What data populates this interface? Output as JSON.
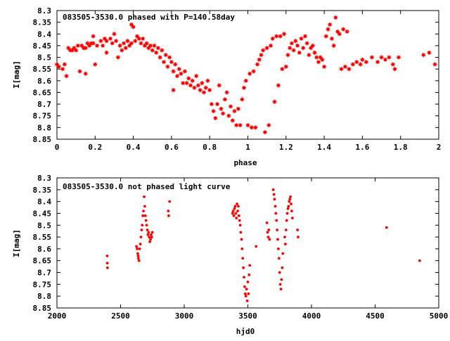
{
  "chart_data": [
    {
      "type": "scatter",
      "title": "083505-3530.0 phased with P=140.58day",
      "xlabel": "phase",
      "ylabel": "I[mag]",
      "xlim": [
        0,
        2
      ],
      "ylim": [
        8.3,
        8.85
      ],
      "y_inverted": true,
      "grid": false,
      "marker_color": "#ff0000",
      "marker": "star",
      "x_ticks": [
        "0",
        "0.2",
        "0.4",
        "0.6",
        "0.8",
        "1",
        "1.2",
        "1.4",
        "1.6",
        "1.8",
        "2"
      ],
      "y_ticks": [
        "8.3",
        "8.35",
        "8.4",
        "8.45",
        "8.5",
        "8.55",
        "8.6",
        "8.65",
        "8.7",
        "8.75",
        "8.8",
        "8.85"
      ],
      "points": [
        [
          0.0,
          8.53
        ],
        [
          0.01,
          8.54
        ],
        [
          0.03,
          8.55
        ],
        [
          0.04,
          8.53
        ],
        [
          0.05,
          8.58
        ],
        [
          0.06,
          8.46
        ],
        [
          0.07,
          8.47
        ],
        [
          0.08,
          8.47
        ],
        [
          0.09,
          8.46
        ],
        [
          0.1,
          8.47
        ],
        [
          0.11,
          8.45
        ],
        [
          0.12,
          8.56
        ],
        [
          0.13,
          8.45
        ],
        [
          0.14,
          8.46
        ],
        [
          0.15,
          8.46
        ],
        [
          0.15,
          8.57
        ],
        [
          0.16,
          8.44
        ],
        [
          0.17,
          8.45
        ],
        [
          0.18,
          8.44
        ],
        [
          0.19,
          8.41
        ],
        [
          0.19,
          8.44
        ],
        [
          0.2,
          8.53
        ],
        [
          0.21,
          8.45
        ],
        [
          0.23,
          8.43
        ],
        [
          0.24,
          8.45
        ],
        [
          0.25,
          8.42
        ],
        [
          0.26,
          8.48
        ],
        [
          0.26,
          8.43
        ],
        [
          0.28,
          8.42
        ],
        [
          0.29,
          8.44
        ],
        [
          0.3,
          8.4
        ],
        [
          0.31,
          8.43
        ],
        [
          0.32,
          8.5
        ],
        [
          0.33,
          8.45
        ],
        [
          0.34,
          8.47
        ],
        [
          0.35,
          8.44
        ],
        [
          0.36,
          8.46
        ],
        [
          0.37,
          8.43
        ],
        [
          0.38,
          8.45
        ],
        [
          0.39,
          8.36
        ],
        [
          0.39,
          8.44
        ],
        [
          0.4,
          8.37
        ],
        [
          0.41,
          8.43
        ],
        [
          0.42,
          8.41
        ],
        [
          0.43,
          8.42
        ],
        [
          0.44,
          8.44
        ],
        [
          0.45,
          8.42
        ],
        [
          0.46,
          8.45
        ],
        [
          0.47,
          8.44
        ],
        [
          0.48,
          8.46
        ],
        [
          0.49,
          8.45
        ],
        [
          0.5,
          8.47
        ],
        [
          0.51,
          8.45
        ],
        [
          0.52,
          8.48
        ],
        [
          0.53,
          8.46
        ],
        [
          0.54,
          8.5
        ],
        [
          0.55,
          8.47
        ],
        [
          0.56,
          8.52
        ],
        [
          0.57,
          8.49
        ],
        [
          0.58,
          8.54
        ],
        [
          0.59,
          8.5
        ],
        [
          0.6,
          8.52
        ],
        [
          0.61,
          8.56
        ],
        [
          0.61,
          8.64
        ],
        [
          0.62,
          8.53
        ],
        [
          0.63,
          8.58
        ],
        [
          0.64,
          8.55
        ],
        [
          0.65,
          8.57
        ],
        [
          0.66,
          8.61
        ],
        [
          0.67,
          8.56
        ],
        [
          0.68,
          8.61
        ],
        [
          0.69,
          8.59
        ],
        [
          0.7,
          8.62
        ],
        [
          0.71,
          8.6
        ],
        [
          0.72,
          8.63
        ],
        [
          0.73,
          8.58
        ],
        [
          0.74,
          8.62
        ],
        [
          0.75,
          8.64
        ],
        [
          0.76,
          8.61
        ],
        [
          0.77,
          8.65
        ],
        [
          0.78,
          8.63
        ],
        [
          0.79,
          8.6
        ],
        [
          0.8,
          8.64
        ],
        [
          0.81,
          8.7
        ],
        [
          0.82,
          8.73
        ],
        [
          0.83,
          8.76
        ],
        [
          0.84,
          8.7
        ],
        [
          0.85,
          8.62
        ],
        [
          0.86,
          8.72
        ],
        [
          0.87,
          8.74
        ],
        [
          0.88,
          8.68
        ],
        [
          0.89,
          8.65
        ],
        [
          0.9,
          8.75
        ],
        [
          0.91,
          8.71
        ],
        [
          0.92,
          8.77
        ],
        [
          0.93,
          8.73
        ],
        [
          0.94,
          8.79
        ],
        [
          0.95,
          8.72
        ],
        [
          0.96,
          8.79
        ],
        [
          0.97,
          8.68
        ],
        [
          0.98,
          8.63
        ],
        [
          0.99,
          8.6
        ],
        [
          1.0,
          8.79
        ],
        [
          1.01,
          8.57
        ],
        [
          1.02,
          8.8
        ],
        [
          1.03,
          8.56
        ],
        [
          1.04,
          8.8
        ],
        [
          1.05,
          8.53
        ],
        [
          1.06,
          8.51
        ],
        [
          1.07,
          8.49
        ],
        [
          1.08,
          8.47
        ],
        [
          1.09,
          8.82
        ],
        [
          1.1,
          8.46
        ],
        [
          1.11,
          8.79
        ],
        [
          1.12,
          8.45
        ],
        [
          1.13,
          8.42
        ],
        [
          1.14,
          8.69
        ],
        [
          1.15,
          8.41
        ],
        [
          1.16,
          8.62
        ],
        [
          1.17,
          8.41
        ],
        [
          1.18,
          8.55
        ],
        [
          1.19,
          8.4
        ],
        [
          1.2,
          8.54
        ],
        [
          1.21,
          8.49
        ],
        [
          1.22,
          8.46
        ],
        [
          1.23,
          8.44
        ],
        [
          1.24,
          8.47
        ],
        [
          1.25,
          8.43
        ],
        [
          1.26,
          8.45
        ],
        [
          1.27,
          8.48
        ],
        [
          1.28,
          8.42
        ],
        [
          1.29,
          8.46
        ],
        [
          1.3,
          8.41
        ],
        [
          1.31,
          8.44
        ],
        [
          1.32,
          8.49
        ],
        [
          1.33,
          8.46
        ],
        [
          1.34,
          8.45
        ],
        [
          1.35,
          8.48
        ],
        [
          1.36,
          8.5
        ],
        [
          1.37,
          8.52
        ],
        [
          1.38,
          8.5
        ],
        [
          1.39,
          8.51
        ],
        [
          1.4,
          8.54
        ],
        [
          1.41,
          8.41
        ],
        [
          1.42,
          8.38
        ],
        [
          1.43,
          8.36
        ],
        [
          1.44,
          8.42
        ],
        [
          1.45,
          8.45
        ],
        [
          1.46,
          8.33
        ],
        [
          1.47,
          8.39
        ],
        [
          1.48,
          8.4
        ],
        [
          1.49,
          8.55
        ],
        [
          1.5,
          8.38
        ],
        [
          1.51,
          8.54
        ],
        [
          1.52,
          8.39
        ],
        [
          1.53,
          8.55
        ],
        [
          1.55,
          8.53
        ],
        [
          1.57,
          8.52
        ],
        [
          1.59,
          8.53
        ],
        [
          1.6,
          8.51
        ],
        [
          1.62,
          8.52
        ],
        [
          1.65,
          8.5
        ],
        [
          1.68,
          8.52
        ],
        [
          1.7,
          8.5
        ],
        [
          1.72,
          8.51
        ],
        [
          1.74,
          8.5
        ],
        [
          1.76,
          8.53
        ],
        [
          1.77,
          8.55
        ],
        [
          1.79,
          8.5
        ],
        [
          1.92,
          8.49
        ],
        [
          1.95,
          8.48
        ],
        [
          1.98,
          8.53
        ]
      ]
    },
    {
      "type": "scatter",
      "title": "083505-3530.0 not phased light curve",
      "xlabel": "hjd0",
      "ylabel": "I[mag]",
      "xlim": [
        2000,
        5000
      ],
      "ylim": [
        8.3,
        8.85
      ],
      "y_inverted": true,
      "grid": false,
      "marker_color": "#ff0000",
      "marker": "dot",
      "x_ticks": [
        "2000",
        "2500",
        "3000",
        "3500",
        "4000",
        "4500",
        "5000"
      ],
      "y_ticks": [
        "8.3",
        "8.35",
        "8.4",
        "8.45",
        "8.5",
        "8.55",
        "8.6",
        "8.65",
        "8.7",
        "8.75",
        "8.8",
        "8.85"
      ],
      "points": [
        [
          2395,
          8.63
        ],
        [
          2396,
          8.66
        ],
        [
          2397,
          8.68
        ],
        [
          2625,
          8.59
        ],
        [
          2630,
          8.6
        ],
        [
          2635,
          8.62
        ],
        [
          2638,
          8.63
        ],
        [
          2640,
          8.64
        ],
        [
          2645,
          8.65
        ],
        [
          2650,
          8.6
        ],
        [
          2655,
          8.58
        ],
        [
          2660,
          8.55
        ],
        [
          2665,
          8.52
        ],
        [
          2670,
          8.5
        ],
        [
          2675,
          8.46
        ],
        [
          2680,
          8.44
        ],
        [
          2685,
          8.38
        ],
        [
          2690,
          8.42
        ],
        [
          2695,
          8.46
        ],
        [
          2700,
          8.48
        ],
        [
          2705,
          8.5
        ],
        [
          2710,
          8.52
        ],
        [
          2715,
          8.54
        ],
        [
          2720,
          8.53
        ],
        [
          2725,
          8.55
        ],
        [
          2730,
          8.57
        ],
        [
          2735,
          8.56
        ],
        [
          2740,
          8.54
        ],
        [
          2745,
          8.55
        ],
        [
          2750,
          8.53
        ],
        [
          2875,
          8.44
        ],
        [
          2878,
          8.46
        ],
        [
          2885,
          8.4
        ],
        [
          3380,
          8.45
        ],
        [
          3385,
          8.44
        ],
        [
          3390,
          8.46
        ],
        [
          3395,
          8.43
        ],
        [
          3400,
          8.42
        ],
        [
          3405,
          8.45
        ],
        [
          3410,
          8.47
        ],
        [
          3415,
          8.41
        ],
        [
          3420,
          8.44
        ],
        [
          3425,
          8.42
        ],
        [
          3430,
          8.46
        ],
        [
          3435,
          8.48
        ],
        [
          3440,
          8.5
        ],
        [
          3445,
          8.53
        ],
        [
          3450,
          8.56
        ],
        [
          3455,
          8.6
        ],
        [
          3460,
          8.64
        ],
        [
          3465,
          8.68
        ],
        [
          3470,
          8.72
        ],
        [
          3475,
          8.76
        ],
        [
          3480,
          8.79
        ],
        [
          3485,
          8.8
        ],
        [
          3490,
          8.77
        ],
        [
          3495,
          8.82
        ],
        [
          3500,
          8.74
        ],
        [
          3505,
          8.79
        ],
        [
          3510,
          8.71
        ],
        [
          3515,
          8.67
        ],
        [
          3565,
          8.59
        ],
        [
          3650,
          8.49
        ],
        [
          3655,
          8.53
        ],
        [
          3660,
          8.55
        ],
        [
          3665,
          8.52
        ],
        [
          3670,
          8.56
        ],
        [
          3700,
          8.35
        ],
        [
          3705,
          8.37
        ],
        [
          3710,
          8.39
        ],
        [
          3715,
          8.42
        ],
        [
          3720,
          8.45
        ],
        [
          3725,
          8.48
        ],
        [
          3730,
          8.52
        ],
        [
          3735,
          8.56
        ],
        [
          3740,
          8.6
        ],
        [
          3745,
          8.64
        ],
        [
          3750,
          8.7
        ],
        [
          3755,
          8.75
        ],
        [
          3760,
          8.77
        ],
        [
          3765,
          8.73
        ],
        [
          3770,
          8.68
        ],
        [
          3775,
          8.62
        ],
        [
          3790,
          8.55
        ],
        [
          3795,
          8.58
        ],
        [
          3800,
          8.52
        ],
        [
          3805,
          8.48
        ],
        [
          3810,
          8.45
        ],
        [
          3815,
          8.43
        ],
        [
          3820,
          8.42
        ],
        [
          3825,
          8.4
        ],
        [
          3830,
          8.39
        ],
        [
          3835,
          8.38
        ],
        [
          3840,
          8.41
        ],
        [
          3845,
          8.44
        ],
        [
          3850,
          8.47
        ],
        [
          3890,
          8.52
        ],
        [
          3895,
          8.55
        ],
        [
          4590,
          8.51
        ],
        [
          4850,
          8.65
        ]
      ]
    }
  ]
}
